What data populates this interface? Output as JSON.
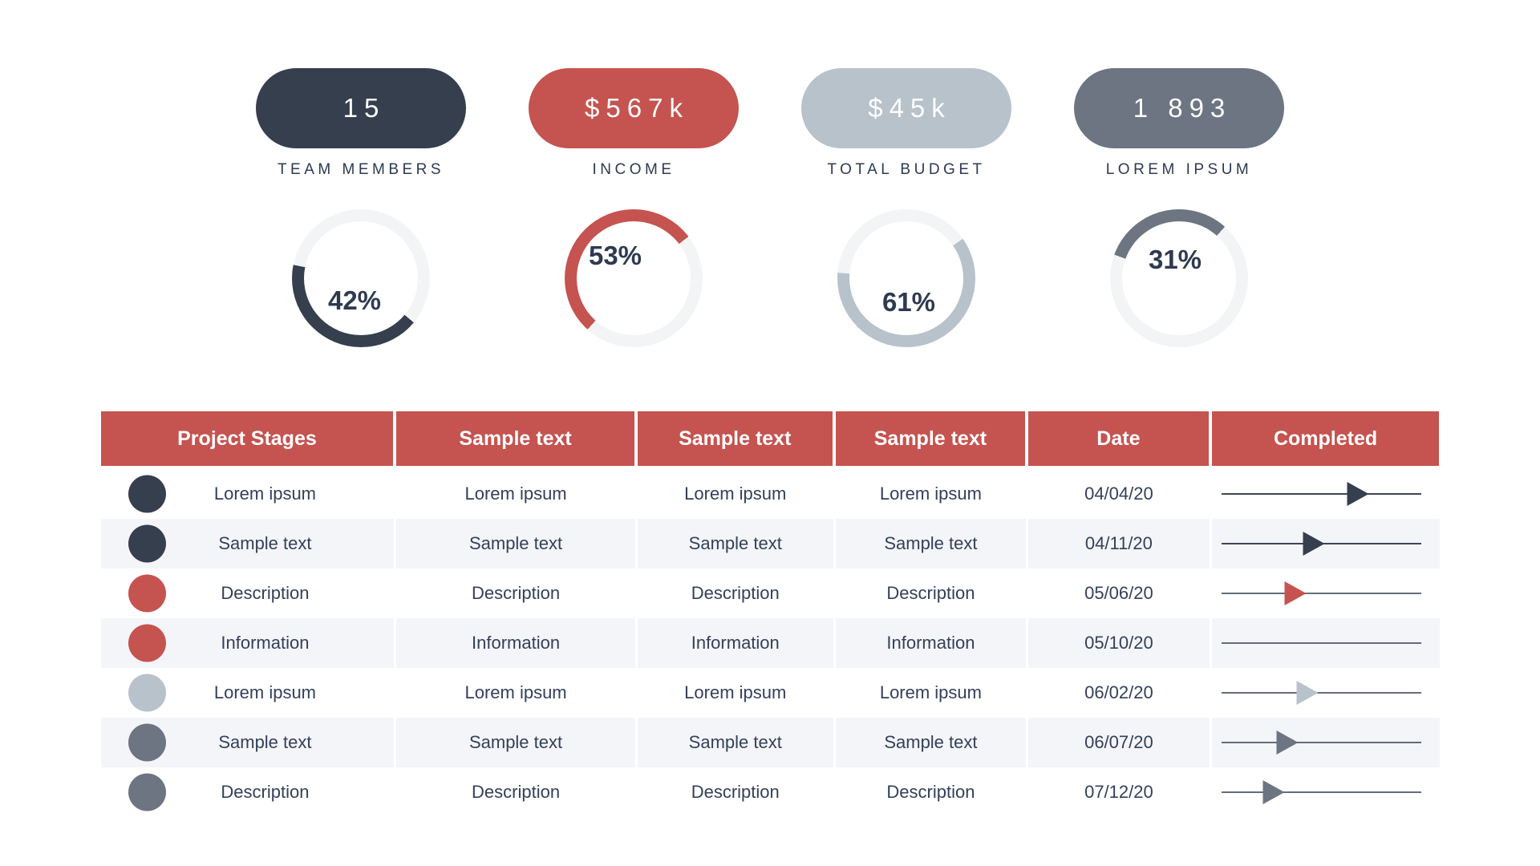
{
  "colors": {
    "navy": "#353f4e",
    "red": "#c5534f",
    "lightgray": "#b8c2cb",
    "slate": "#6d7482",
    "track": "#f3f4f6",
    "line_navy": "#3c4557",
    "line_gray": "#646c7c",
    "text_navy": "#2e3a50",
    "header_bg": "#c5534f",
    "row_alt_bg": "#f4f5f8"
  },
  "stats": [
    {
      "value": "15",
      "label": "TEAM MEMBERS",
      "color_key": "navy",
      "percent": 42,
      "percent_label": "42%",
      "arc_start_deg": 130
    },
    {
      "value": "$567k",
      "label": "INCOME",
      "color_key": "red",
      "percent": 53,
      "percent_label": "53%",
      "arc_start_deg": 222
    },
    {
      "value": "$45k",
      "label": "TOTAL BUDGET",
      "color_key": "lightgray",
      "percent": 61,
      "percent_label": "61%",
      "arc_start_deg": 55
    },
    {
      "value": "1 893",
      "label": "LOREM IPSUM",
      "color_key": "slate",
      "percent": 31,
      "percent_label": "31%",
      "arc_start_deg": 290
    }
  ],
  "table": {
    "headers": [
      "Project Stages",
      "Sample text",
      "Sample text",
      "Sample text",
      "Date",
      "Completed"
    ],
    "rows": [
      {
        "dot": "navy",
        "stage": "Lorem ipsum",
        "cells": [
          "Lorem ipsum",
          "Lorem ipsum",
          "Lorem ipsum"
        ],
        "date": "04/04/20",
        "line": "line_navy",
        "arrow_color": "navy",
        "arrow_pos_pct": 68
      },
      {
        "dot": "navy",
        "stage": "Sample text",
        "cells": [
          "Sample text",
          "Sample text",
          "Sample text"
        ],
        "date": "04/11/20",
        "line": "line_navy",
        "arrow_color": "navy",
        "arrow_pos_pct": 46
      },
      {
        "dot": "red",
        "stage": "Description",
        "cells": [
          "Description",
          "Description",
          "Description"
        ],
        "date": "05/06/20",
        "line": "line_gray",
        "arrow_color": "red",
        "arrow_pos_pct": 37
      },
      {
        "dot": "red",
        "stage": "Information",
        "cells": [
          "Information",
          "Information",
          "Information"
        ],
        "date": "05/10/20",
        "line": "line_gray",
        "arrow_color": null,
        "arrow_pos_pct": null
      },
      {
        "dot": "lightgray",
        "stage": "Lorem ipsum",
        "cells": [
          "Lorem ipsum",
          "Lorem ipsum",
          "Lorem ipsum"
        ],
        "date": "06/02/20",
        "line": "line_gray",
        "arrow_color": "lightgray",
        "arrow_pos_pct": 43
      },
      {
        "dot": "slate",
        "stage": "Sample text",
        "cells": [
          "Sample text",
          "Sample text",
          "Sample text"
        ],
        "date": "06/07/20",
        "line": "line_gray",
        "arrow_color": "slate",
        "arrow_pos_pct": 33
      },
      {
        "dot": "slate",
        "stage": "Description",
        "cells": [
          "Description",
          "Description",
          "Description"
        ],
        "date": "07/12/20",
        "line": "line_gray",
        "arrow_color": "slate",
        "arrow_pos_pct": 26
      }
    ]
  },
  "chart_data": [
    {
      "type": "pie",
      "title": "TEAM MEMBERS",
      "stat_value": "15",
      "labels": [
        "progress",
        "remainder"
      ],
      "values": [
        42,
        58
      ],
      "annotation": "42%",
      "color": "#353f4e",
      "track_color": "#f3f4f6"
    },
    {
      "type": "pie",
      "title": "INCOME",
      "stat_value": "$567k",
      "labels": [
        "progress",
        "remainder"
      ],
      "values": [
        53,
        47
      ],
      "annotation": "53%",
      "color": "#c5534f",
      "track_color": "#f3f4f6"
    },
    {
      "type": "pie",
      "title": "TOTAL BUDGET",
      "stat_value": "$45k",
      "labels": [
        "progress",
        "remainder"
      ],
      "values": [
        61,
        39
      ],
      "annotation": "61%",
      "color": "#b8c2cb",
      "track_color": "#f3f4f6"
    },
    {
      "type": "pie",
      "title": "LOREM IPSUM",
      "stat_value": "1 893",
      "labels": [
        "progress",
        "remainder"
      ],
      "values": [
        31,
        69
      ],
      "annotation": "31%",
      "color": "#6d7482",
      "track_color": "#f3f4f6"
    },
    {
      "type": "table",
      "columns": [
        "Project Stages",
        "Sample text",
        "Sample text",
        "Sample text",
        "Date",
        "Completed"
      ],
      "rows": [
        [
          "Lorem ipsum",
          "Lorem ipsum",
          "Lorem ipsum",
          "Lorem ipsum",
          "04/04/20",
          "arrow at 68%"
        ],
        [
          "Sample text",
          "Sample text",
          "Sample text",
          "Sample text",
          "04/11/20",
          "arrow at 46%"
        ],
        [
          "Description",
          "Description",
          "Description",
          "Description",
          "05/06/20",
          "arrow at 37%"
        ],
        [
          "Information",
          "Information",
          "Information",
          "Information",
          "05/10/20",
          "no arrow"
        ],
        [
          "Lorem ipsum",
          "Lorem ipsum",
          "Lorem ipsum",
          "Lorem ipsum",
          "06/02/20",
          "arrow at 43%"
        ],
        [
          "Sample text",
          "Sample text",
          "Sample text",
          "Sample text",
          "06/07/20",
          "arrow at 33%"
        ],
        [
          "Description",
          "Description",
          "Description",
          "Description",
          "07/12/20",
          "arrow at 26%"
        ]
      ]
    }
  ]
}
